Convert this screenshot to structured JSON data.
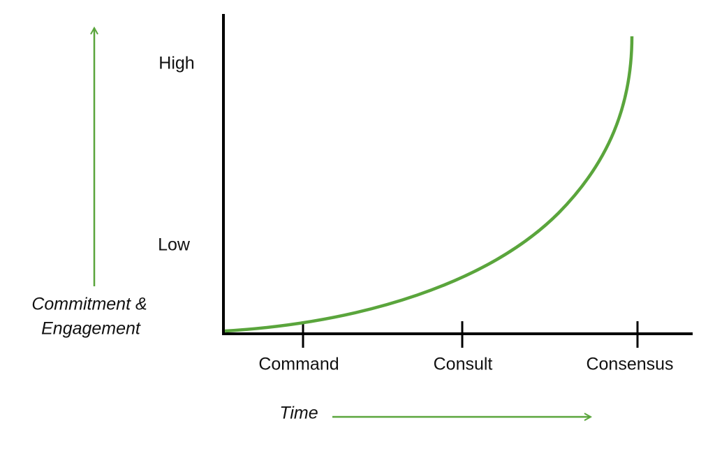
{
  "y_axis": {
    "title_lines": [
      "Commitment &",
      "Engagement"
    ],
    "labels": [
      "High",
      "Low"
    ]
  },
  "x_axis": {
    "title": "Time",
    "labels": [
      "Command",
      "Consult",
      "Consensus"
    ]
  }
}
